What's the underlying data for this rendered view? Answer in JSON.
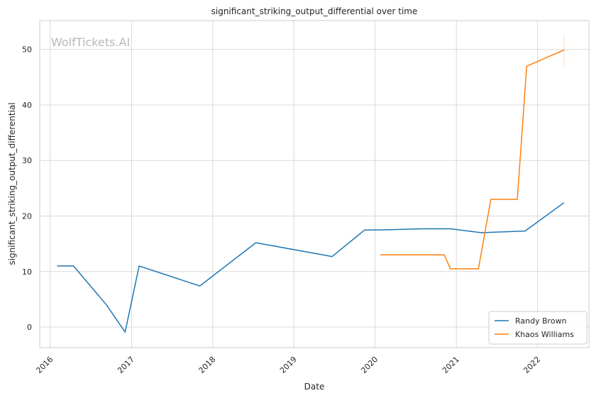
{
  "chart_data": {
    "type": "line",
    "title": "significant_striking_output_differential over time",
    "xlabel": "Date",
    "ylabel": "significant_striking_output_differential",
    "x_ticks": [
      "2016",
      "2017",
      "2018",
      "2019",
      "2020",
      "2021",
      "2022"
    ],
    "y_ticks": [
      0,
      10,
      20,
      30,
      40,
      50
    ],
    "xlim": [
      "2015-11-15",
      "2022-08-20"
    ],
    "ylim": [
      -3.7,
      55.2
    ],
    "grid": true,
    "legend_position": "bottom-right",
    "watermark": "WolfTickets.AI",
    "series": [
      {
        "name": "Randy Brown",
        "color": "#1f77b4",
        "points": [
          {
            "x": "2016-02-01",
            "y": 11.0
          },
          {
            "x": "2016-04-15",
            "y": 11.0
          },
          {
            "x": "2016-09-10",
            "y": 4.0
          },
          {
            "x": "2016-12-03",
            "y": -0.9
          },
          {
            "x": "2017-02-04",
            "y": 11.0
          },
          {
            "x": "2017-11-04",
            "y": 7.4
          },
          {
            "x": "2018-07-14",
            "y": 15.2
          },
          {
            "x": "2019-06-22",
            "y": 12.7
          },
          {
            "x": "2019-11-16",
            "y": 17.5
          },
          {
            "x": "2020-01-25",
            "y": 17.5
          },
          {
            "x": "2020-08-01",
            "y": 17.7
          },
          {
            "x": "2020-12-05",
            "y": 17.7
          },
          {
            "x": "2021-04-24",
            "y": 17.0
          },
          {
            "x": "2021-11-06",
            "y": 17.3
          },
          {
            "x": "2022-04-30",
            "y": 22.4
          }
        ]
      },
      {
        "name": "Khaos Williams",
        "color": "#ff7f0e",
        "points": [
          {
            "x": "2020-01-25",
            "y": 13.0
          },
          {
            "x": "2020-11-07",
            "y": 13.0
          },
          {
            "x": "2020-12-05",
            "y": 10.5
          },
          {
            "x": "2021-04-10",
            "y": 10.5
          },
          {
            "x": "2021-06-05",
            "y": 23.0
          },
          {
            "x": "2021-10-02",
            "y": 23.0
          },
          {
            "x": "2021-11-13",
            "y": 47.0
          },
          {
            "x": "2022-04-30",
            "y": 49.9
          }
        ]
      }
    ]
  }
}
